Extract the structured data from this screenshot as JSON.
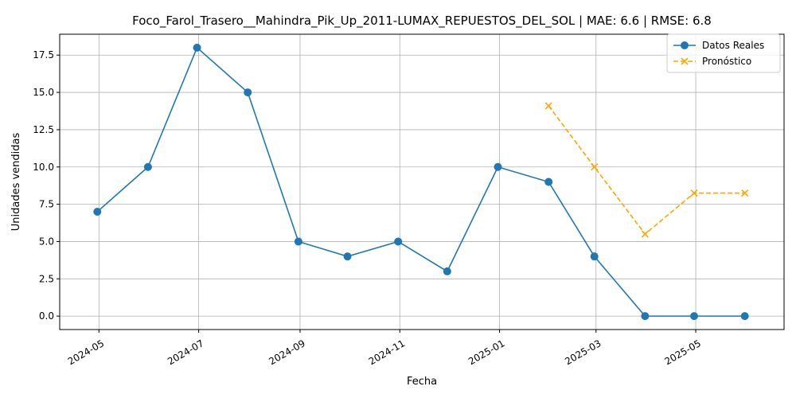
{
  "chart_data": {
    "type": "line",
    "title": "Foco_Farol_Trasero__Mahindra_Pik_Up_2011-LUMAX_REPUESTOS_DEL_SOL | MAE: 6.6 | RMSE: 6.8",
    "xlabel": "Fecha",
    "ylabel": "Unidades vendidas",
    "ylim": [
      -0.9,
      18.9
    ],
    "xlim": [
      "2024-04-07",
      "2025-06-24"
    ],
    "grid": true,
    "legend_position": "top-right",
    "x_ticks": [
      "2024-05",
      "2024-07",
      "2024-09",
      "2024-11",
      "2025-01",
      "2025-03",
      "2025-05"
    ],
    "x_tick_dates": [
      "2024-05-01",
      "2024-07-01",
      "2024-09-01",
      "2024-11-01",
      "2025-01-01",
      "2025-03-01",
      "2025-05-01"
    ],
    "y_ticks": [
      "0.0",
      "2.5",
      "5.0",
      "7.5",
      "10.0",
      "12.5",
      "15.0",
      "17.5"
    ],
    "y_tick_values": [
      0,
      2.5,
      5,
      7.5,
      10,
      12.5,
      15,
      17.5
    ],
    "series": [
      {
        "name": "Datos Reales",
        "color": "#1f77b4",
        "marker": "circle",
        "linestyle": "solid",
        "x": [
          "2024-04-30",
          "2024-05-31",
          "2024-06-30",
          "2024-07-31",
          "2024-08-31",
          "2024-09-30",
          "2024-10-31",
          "2024-11-30",
          "2024-12-31",
          "2025-01-31",
          "2025-02-28",
          "2025-03-31",
          "2025-04-30",
          "2025-05-31"
        ],
        "values": [
          7,
          10,
          18,
          15,
          5,
          4,
          5,
          3,
          10,
          9,
          4,
          0,
          0,
          0
        ]
      },
      {
        "name": "Pronóstico",
        "color": "#ffa500",
        "marker": "x",
        "linestyle": "dashed",
        "x": [
          "2025-01-31",
          "2025-02-28",
          "2025-03-31",
          "2025-04-30",
          "2025-05-31"
        ],
        "values": [
          14.1,
          10.0,
          5.5,
          8.25,
          8.25
        ]
      }
    ]
  }
}
